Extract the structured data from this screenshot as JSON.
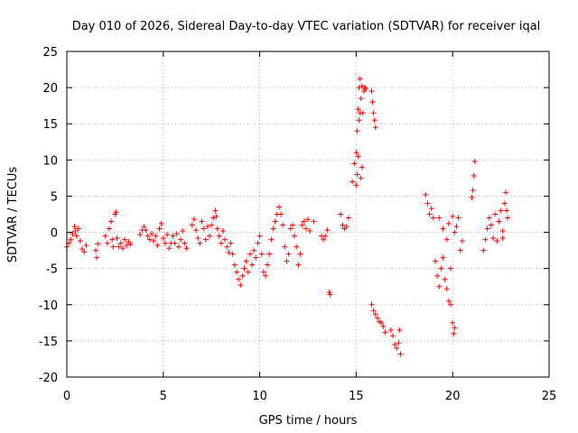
{
  "chart_data": {
    "type": "scatter",
    "title": "Day 010 of 2026, Sidereal Day-to-day VTEC variation (SDTVAR) for receiver iqal",
    "xlabel": "GPS time / hours",
    "ylabel": "SDTVAR / TECUs",
    "xlim": [
      0,
      25
    ],
    "ylim": [
      -20,
      25
    ],
    "xticks": [
      0,
      5,
      10,
      15,
      20,
      25
    ],
    "yticks": [
      -20,
      -15,
      -10,
      -5,
      0,
      5,
      10,
      15,
      20,
      25
    ],
    "xtick_labels": [
      "0",
      "5",
      "10",
      "15",
      "20",
      "25"
    ],
    "ytick_labels": [
      "-20",
      "-15",
      "-10",
      "-5",
      "0",
      "5",
      "10",
      "15",
      "20",
      "25"
    ],
    "grid": true,
    "marker": "+",
    "color": "#ff0000",
    "series": [
      {
        "name": "iqal",
        "points": [
          [
            0.0,
            -2.0
          ],
          [
            0.1,
            -1.5
          ],
          [
            0.2,
            -1.0
          ],
          [
            0.3,
            -0.2
          ],
          [
            0.4,
            0.8
          ],
          [
            0.45,
            0.2
          ],
          [
            0.5,
            -0.5
          ],
          [
            0.6,
            0.5
          ],
          [
            0.7,
            -1.2
          ],
          [
            0.8,
            -2.3
          ],
          [
            0.9,
            -2.7
          ],
          [
            1.0,
            -1.8
          ],
          [
            1.5,
            -2.5
          ],
          [
            1.55,
            -3.5
          ],
          [
            1.6,
            -1.6
          ],
          [
            2.0,
            -0.5
          ],
          [
            2.1,
            -1.5
          ],
          [
            2.2,
            0.5
          ],
          [
            2.3,
            1.5
          ],
          [
            2.35,
            -1.0
          ],
          [
            2.4,
            -2.0
          ],
          [
            2.5,
            2.5
          ],
          [
            2.55,
            2.8
          ],
          [
            2.6,
            -0.8
          ],
          [
            2.7,
            -2.0
          ],
          [
            2.8,
            -1.5
          ],
          [
            2.9,
            -2.2
          ],
          [
            3.0,
            -1.0
          ],
          [
            3.1,
            -1.8
          ],
          [
            3.2,
            -1.3
          ],
          [
            3.3,
            -1.6
          ],
          [
            3.8,
            -0.3
          ],
          [
            3.9,
            0.3
          ],
          [
            4.0,
            0.8
          ],
          [
            4.1,
            0.3
          ],
          [
            4.2,
            -0.5
          ],
          [
            4.3,
            -1.0
          ],
          [
            4.4,
            -0.2
          ],
          [
            4.5,
            -1.2
          ],
          [
            4.6,
            -0.5
          ],
          [
            4.7,
            -1.8
          ],
          [
            4.8,
            0.5
          ],
          [
            4.9,
            1.2
          ],
          [
            5.0,
            -0.8
          ],
          [
            5.1,
            -1.5
          ],
          [
            5.2,
            -0.3
          ],
          [
            5.3,
            -2.2
          ],
          [
            5.4,
            -1.5
          ],
          [
            5.5,
            -0.5
          ],
          [
            5.6,
            -1.5
          ],
          [
            5.7,
            -0.2
          ],
          [
            5.8,
            -2.0
          ],
          [
            5.9,
            -1.0
          ],
          [
            6.0,
            0.2
          ],
          [
            6.1,
            -1.5
          ],
          [
            6.2,
            -2.2
          ],
          [
            6.5,
            1.0
          ],
          [
            6.6,
            1.8
          ],
          [
            6.7,
            0.3
          ],
          [
            6.8,
            -0.8
          ],
          [
            6.9,
            -1.5
          ],
          [
            7.0,
            1.5
          ],
          [
            7.1,
            0.5
          ],
          [
            7.2,
            -1.0
          ],
          [
            7.3,
            0.8
          ],
          [
            7.4,
            -0.5
          ],
          [
            7.5,
            1.0
          ],
          [
            7.6,
            2.0
          ],
          [
            7.7,
            3.0
          ],
          [
            7.75,
            2.2
          ],
          [
            7.8,
            0.5
          ],
          [
            7.9,
            -0.5
          ],
          [
            8.0,
            -1.5
          ],
          [
            8.1,
            0.2
          ],
          [
            8.2,
            -1.0
          ],
          [
            8.3,
            -2.0
          ],
          [
            8.4,
            -2.8
          ],
          [
            8.5,
            -1.5
          ],
          [
            8.6,
            -3.0
          ],
          [
            8.7,
            -4.5
          ],
          [
            8.8,
            -5.5
          ],
          [
            8.9,
            -6.5
          ],
          [
            9.0,
            -7.3
          ],
          [
            9.1,
            -6.0
          ],
          [
            9.2,
            -5.0
          ],
          [
            9.3,
            -4.0
          ],
          [
            9.4,
            -5.5
          ],
          [
            9.5,
            -3.0
          ],
          [
            9.6,
            -4.5
          ],
          [
            9.7,
            -2.5
          ],
          [
            9.8,
            -3.5
          ],
          [
            9.9,
            -1.5
          ],
          [
            10.0,
            -0.5
          ],
          [
            10.1,
            -3.0
          ],
          [
            10.2,
            -5.5
          ],
          [
            10.3,
            -6.0
          ],
          [
            10.4,
            -4.5
          ],
          [
            10.5,
            -3.0
          ],
          [
            10.6,
            -1.0
          ],
          [
            10.7,
            0.5
          ],
          [
            10.8,
            1.5
          ],
          [
            10.9,
            2.5
          ],
          [
            11.0,
            3.5
          ],
          [
            11.1,
            2.5
          ],
          [
            11.2,
            1.0
          ],
          [
            11.3,
            -2.0
          ],
          [
            11.4,
            -4.0
          ],
          [
            11.5,
            -3.0
          ],
          [
            11.6,
            0.5
          ],
          [
            11.7,
            1.0
          ],
          [
            11.8,
            -0.5
          ],
          [
            11.9,
            -2.0
          ],
          [
            12.0,
            -4.5
          ],
          [
            12.1,
            -3.0
          ],
          [
            12.2,
            1.0
          ],
          [
            12.3,
            1.5
          ],
          [
            12.4,
            0.5
          ],
          [
            12.5,
            1.8
          ],
          [
            12.6,
            0.2
          ],
          [
            12.8,
            1.5
          ],
          [
            13.2,
            -0.5
          ],
          [
            13.3,
            -1.0
          ],
          [
            13.4,
            -0.5
          ],
          [
            13.5,
            0.3
          ],
          [
            13.6,
            -8.3
          ],
          [
            13.65,
            -8.6
          ],
          [
            14.2,
            2.5
          ],
          [
            14.3,
            1.0
          ],
          [
            14.4,
            0.5
          ],
          [
            14.5,
            0.8
          ],
          [
            14.6,
            2.0
          ],
          [
            14.8,
            7.0
          ],
          [
            14.9,
            9.5
          ],
          [
            15.0,
            11.0
          ],
          [
            15.05,
            14.0
          ],
          [
            15.1,
            17.0
          ],
          [
            15.15,
            20.0
          ],
          [
            15.2,
            21.2
          ],
          [
            15.25,
            18.5
          ],
          [
            15.3,
            20.2
          ],
          [
            15.35,
            16.5
          ],
          [
            15.4,
            19.5
          ],
          [
            15.45,
            20.0
          ],
          [
            15.5,
            19.8
          ],
          [
            15.0,
            6.5
          ],
          [
            15.05,
            8.0
          ],
          [
            15.1,
            10.5
          ],
          [
            15.15,
            15.5
          ],
          [
            15.2,
            16.5
          ],
          [
            15.25,
            7.5
          ],
          [
            15.3,
            9.0
          ],
          [
            15.8,
            19.5
          ],
          [
            15.85,
            18.0
          ],
          [
            15.9,
            16.5
          ],
          [
            15.95,
            15.5
          ],
          [
            16.0,
            14.5
          ],
          [
            15.8,
            -10.0
          ],
          [
            15.9,
            -10.8
          ],
          [
            16.0,
            -11.3
          ],
          [
            16.1,
            -11.8
          ],
          [
            16.2,
            -12.3
          ],
          [
            16.3,
            -12.5
          ],
          [
            16.4,
            -13.0
          ],
          [
            16.5,
            -13.8
          ],
          [
            16.8,
            -13.5
          ],
          [
            16.9,
            -14.3
          ],
          [
            17.0,
            -15.5
          ],
          [
            17.1,
            -16.0
          ],
          [
            17.2,
            -15.3
          ],
          [
            17.25,
            -13.5
          ],
          [
            17.3,
            -16.8
          ],
          [
            18.6,
            5.2
          ],
          [
            18.7,
            4.0
          ],
          [
            18.8,
            2.5
          ],
          [
            18.9,
            3.3
          ],
          [
            19.0,
            2.0
          ],
          [
            19.1,
            -4.0
          ],
          [
            19.2,
            -6.0
          ],
          [
            19.3,
            -7.5
          ],
          [
            19.4,
            -5.0
          ],
          [
            19.5,
            -3.5
          ],
          [
            19.6,
            -6.5
          ],
          [
            19.7,
            -7.8
          ],
          [
            19.8,
            -9.5
          ],
          [
            19.9,
            -10.0
          ],
          [
            19.9,
            -5.0
          ],
          [
            20.0,
            -12.5
          ],
          [
            20.05,
            -14.0
          ],
          [
            20.1,
            -13.2
          ],
          [
            20.2,
            0.8
          ],
          [
            20.3,
            2.0
          ],
          [
            20.4,
            -2.5
          ],
          [
            20.5,
            -1.2
          ],
          [
            19.3,
            2.0
          ],
          [
            19.5,
            0.5
          ],
          [
            19.7,
            -1.0
          ],
          [
            19.8,
            1.2
          ],
          [
            20.0,
            2.2
          ],
          [
            20.1,
            0.0
          ],
          [
            21.0,
            4.8
          ],
          [
            21.05,
            5.8
          ],
          [
            21.1,
            7.8
          ],
          [
            21.15,
            9.8
          ],
          [
            21.6,
            -2.5
          ],
          [
            21.7,
            -1.0
          ],
          [
            21.8,
            0.5
          ],
          [
            21.9,
            2.0
          ],
          [
            22.0,
            1.0
          ],
          [
            22.1,
            -0.8
          ],
          [
            22.2,
            2.5
          ],
          [
            22.3,
            -1.2
          ],
          [
            22.4,
            1.5
          ],
          [
            22.5,
            3.0
          ],
          [
            22.6,
            0.2
          ],
          [
            22.7,
            4.0
          ],
          [
            22.75,
            5.5
          ],
          [
            22.8,
            3.0
          ],
          [
            22.85,
            2.0
          ],
          [
            22.6,
            -0.8
          ]
        ]
      }
    ]
  }
}
